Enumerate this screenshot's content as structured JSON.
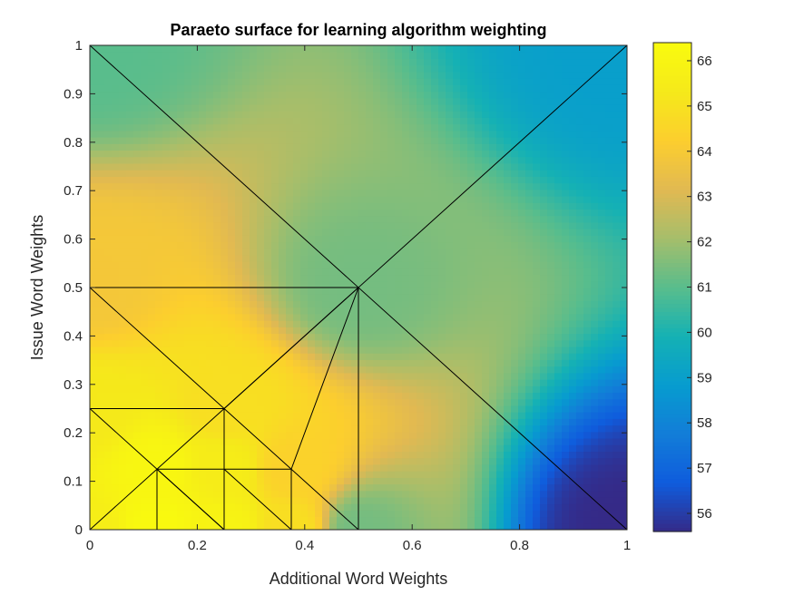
{
  "chart_data": {
    "type": "heatmap",
    "title": "Paraeto surface for learning algorithm weighting",
    "xlabel": "Additional Word Weights",
    "ylabel": "Issue Word Weights",
    "xlim": [
      0,
      1
    ],
    "ylim": [
      0,
      1
    ],
    "x_ticks": [
      "0",
      "0.2",
      "0.4",
      "0.6",
      "0.8",
      "1"
    ],
    "y_ticks": [
      "0",
      "0.1",
      "0.2",
      "0.3",
      "0.4",
      "0.5",
      "0.6",
      "0.7",
      "0.8",
      "0.9",
      "1"
    ],
    "colorbar": {
      "range": [
        55.6,
        66.4
      ],
      "ticks": [
        "56",
        "57",
        "58",
        "59",
        "60",
        "61",
        "62",
        "63",
        "64",
        "65",
        "66"
      ],
      "colormap": "parula"
    },
    "surface_points": [
      {
        "x": 0,
        "y": 0,
        "value": 65.6
      },
      {
        "x": 0.125,
        "y": 0,
        "value": 66.3
      },
      {
        "x": 0.25,
        "y": 0,
        "value": 65.9
      },
      {
        "x": 0.375,
        "y": 0,
        "value": 64.9
      },
      {
        "x": 0.5,
        "y": 0,
        "value": 61.4
      },
      {
        "x": 1,
        "y": 0,
        "value": 55.6
      },
      {
        "x": 0.125,
        "y": 0.125,
        "value": 66.1
      },
      {
        "x": 0.25,
        "y": 0.125,
        "value": 65.5
      },
      {
        "x": 0.375,
        "y": 0.125,
        "value": 64.4
      },
      {
        "x": 0,
        "y": 0.25,
        "value": 65.3
      },
      {
        "x": 0.25,
        "y": 0.25,
        "value": 64.9
      },
      {
        "x": 0,
        "y": 0.5,
        "value": 63.9
      },
      {
        "x": 0.5,
        "y": 0.5,
        "value": 61.4
      },
      {
        "x": 0,
        "y": 1,
        "value": 61.0
      },
      {
        "x": 1,
        "y": 1,
        "value": 59.0
      }
    ],
    "mesh_edges": [
      [
        0,
        1,
        1,
        0
      ],
      [
        0,
        0,
        1,
        1
      ],
      [
        0,
        0.5,
        0.5,
        0.5
      ],
      [
        0.5,
        0,
        0.5,
        0.5
      ],
      [
        0,
        0.25,
        0.25,
        0.25
      ],
      [
        0.25,
        0,
        0.25,
        0.25
      ],
      [
        0,
        0.5,
        0.5,
        0
      ],
      [
        0.125,
        0.125,
        0.375,
        0.125
      ],
      [
        0.125,
        0,
        0.125,
        0.125
      ],
      [
        0.375,
        0,
        0.375,
        0.125
      ],
      [
        0,
        0.25,
        0.25,
        0
      ],
      [
        0.125,
        0.125,
        0.25,
        0
      ],
      [
        0.25,
        0.25,
        0.5,
        0.5
      ],
      [
        0.375,
        0.125,
        0.5,
        0.5
      ],
      [
        0.25,
        0.125,
        0.375,
        0
      ]
    ]
  }
}
